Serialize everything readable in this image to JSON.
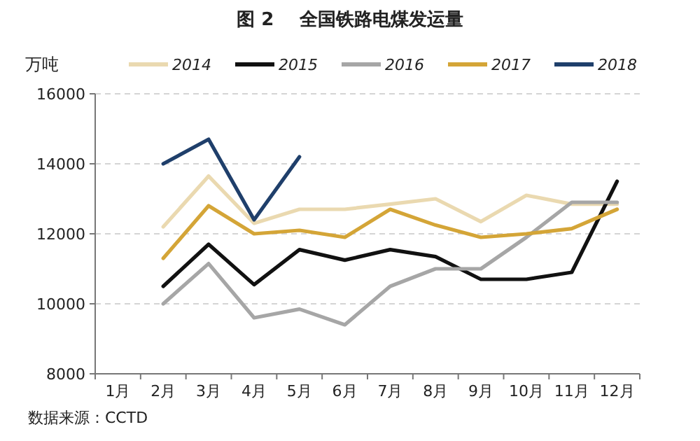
{
  "chart_data": {
    "type": "line",
    "title": "图 2    全国铁路电煤发运量",
    "ylabel": "万吨",
    "categories": [
      "1月",
      "2月",
      "3月",
      "4月",
      "5月",
      "6月",
      "7月",
      "8月",
      "9月",
      "10月",
      "11月",
      "12月"
    ],
    "series": [
      {
        "name": "2014",
        "color": "#ead9b0",
        "values": [
          null,
          12200,
          13650,
          12300,
          12700,
          12700,
          12850,
          13000,
          12350,
          13100,
          12850,
          12850
        ]
      },
      {
        "name": "2015",
        "color": "#111111",
        "values": [
          null,
          10500,
          11700,
          10550,
          11550,
          11250,
          11550,
          11350,
          10700,
          10700,
          10900,
          13500
        ]
      },
      {
        "name": "2016",
        "color": "#a6a6a6",
        "values": [
          null,
          10000,
          11150,
          9600,
          9850,
          9400,
          10500,
          11000,
          11000,
          11900,
          12900,
          12900
        ]
      },
      {
        "name": "2017",
        "color": "#d4a537",
        "values": [
          null,
          11300,
          12800,
          12000,
          12100,
          11900,
          12700,
          12250,
          11900,
          12000,
          12150,
          12700
        ]
      },
      {
        "name": "2018",
        "color": "#1f3f6b",
        "values": [
          null,
          14000,
          14700,
          12400,
          14200,
          null,
          null,
          null,
          null,
          null,
          null,
          null
        ]
      }
    ],
    "ylim": [
      8000,
      16000
    ],
    "yticks": [
      8000,
      10000,
      12000,
      14000,
      16000
    ],
    "grid": "y",
    "legend": "top",
    "marker": "none",
    "line_style": "solid",
    "annotations": [
      "数据来源：CCTD"
    ]
  }
}
